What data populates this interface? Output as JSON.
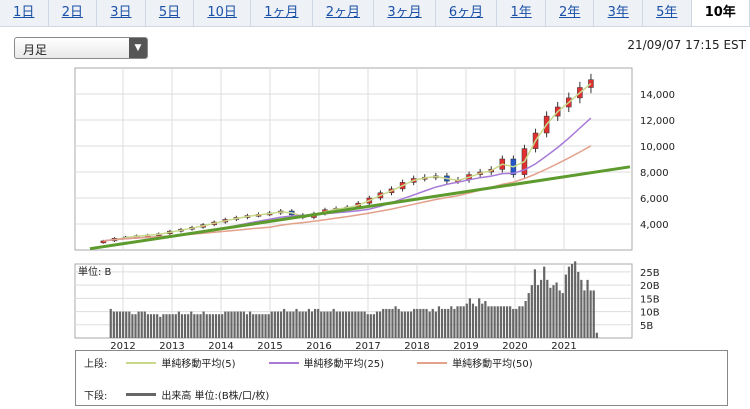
{
  "tabs": [
    {
      "label": "1日",
      "active": false
    },
    {
      "label": "2日",
      "active": false
    },
    {
      "label": "3日",
      "active": false
    },
    {
      "label": "5日",
      "active": false
    },
    {
      "label": "10日",
      "active": false
    },
    {
      "label": "1ヶ月",
      "active": false
    },
    {
      "label": "2ヶ月",
      "active": false
    },
    {
      "label": "3ヶ月",
      "active": false
    },
    {
      "label": "6ヶ月",
      "active": false
    },
    {
      "label": "1年",
      "active": false
    },
    {
      "label": "2年",
      "active": false
    },
    {
      "label": "3年",
      "active": false
    },
    {
      "label": "5年",
      "active": false
    },
    {
      "label": "10年",
      "active": true
    }
  ],
  "period_select": {
    "value": "月足"
  },
  "timestamp": "21/09/07 17:15 EST",
  "legend": {
    "upper_label": "上段:",
    "lower_label": "下段:",
    "items": [
      {
        "name": "単純移動平均(5)",
        "color": "#c9d98a"
      },
      {
        "name": "単純移動平均(25)",
        "color": "#a77ad8"
      },
      {
        "name": "単純移動平均(50)",
        "color": "#e3a08a"
      }
    ],
    "volume_item": "出来高 単位:(B株/口/枚)",
    "volume_color": "#666666"
  },
  "chart_data": {
    "type": "candlestick",
    "x_ticks": [
      "2012",
      "2013",
      "2014",
      "2015",
      "2016",
      "2017",
      "2018",
      "2019",
      "2020",
      "2021"
    ],
    "price_ticks": [
      4000,
      6000,
      8000,
      10000,
      12000,
      14000
    ],
    "price_tick_labels": [
      "4,000",
      "6,000",
      "8,000",
      "10,000",
      "12,000",
      "14,000"
    ],
    "ylim": [
      2000,
      16000
    ],
    "close_quarterly": [
      2700,
      2900,
      3000,
      3100,
      3150,
      3250,
      3450,
      3600,
      3750,
      3950,
      4150,
      4350,
      4500,
      4650,
      4750,
      4850,
      5000,
      4700,
      4500,
      4800,
      5100,
      5200,
      5300,
      5600,
      6000,
      6400,
      6700,
      7200,
      7500,
      7600,
      7700,
      7300,
      7400,
      7800,
      8000,
      8200,
      9000,
      7800,
      9800,
      11000,
      12300,
      13000,
      13700,
      14500,
      15100
    ],
    "ma_trend": {
      "name": "trend",
      "start": 2100,
      "end": 8400,
      "color": "#5d9b2e"
    },
    "volume_unit_label": "単位: B",
    "volume_ticks": [
      "5B",
      "10B",
      "15B",
      "20B",
      "25B"
    ],
    "volume_ylim": [
      0,
      28
    ],
    "volume_monthly": [
      11,
      10,
      10,
      10,
      10,
      10,
      10,
      9,
      9,
      10,
      10,
      10,
      9,
      9,
      9,
      9,
      8,
      9,
      9,
      9,
      9,
      9,
      10,
      9,
      9,
      9,
      10,
      9,
      9,
      9,
      10,
      9,
      9,
      9,
      9,
      9,
      9,
      10,
      10,
      10,
      10,
      10,
      10,
      10,
      9,
      10,
      9,
      9,
      9,
      9,
      9,
      9,
      10,
      10,
      10,
      10,
      11,
      10,
      10,
      10,
      11,
      10,
      10,
      10,
      11,
      10,
      11,
      11,
      10,
      10,
      10,
      10,
      11,
      10,
      10,
      10,
      10,
      10,
      10,
      10,
      10,
      10,
      10,
      9,
      9,
      9,
      10,
      10,
      11,
      11,
      11,
      11,
      12,
      11,
      10,
      10,
      10,
      10,
      11,
      11,
      11,
      11,
      11,
      10,
      11,
      10,
      12,
      11,
      11,
      11,
      12,
      11,
      12,
      12,
      12,
      13,
      15,
      13,
      12,
      15,
      13,
      14,
      12,
      12,
      12,
      12,
      12,
      12,
      12,
      12,
      11,
      11,
      12,
      12,
      14,
      17,
      20,
      26,
      20,
      22,
      27,
      22,
      19,
      20,
      21,
      18,
      17,
      24,
      27,
      28,
      29,
      25,
      22,
      18,
      22,
      18,
      18,
      2
    ]
  }
}
